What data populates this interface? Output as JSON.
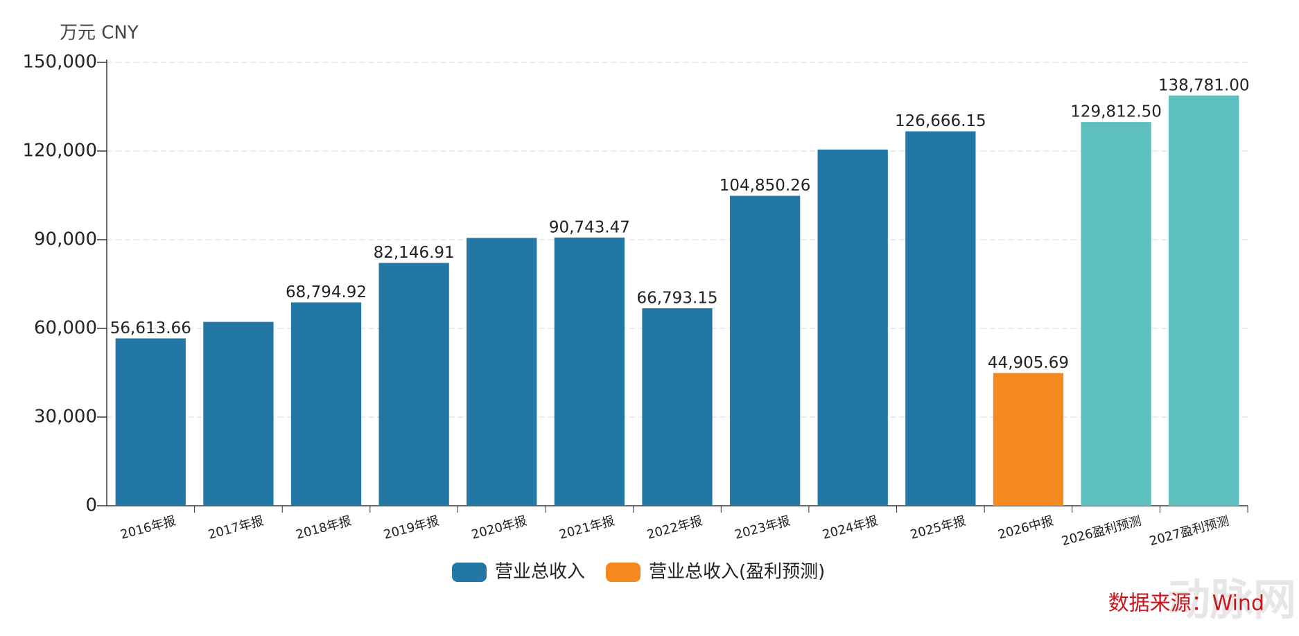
{
  "chart_data": {
    "type": "bar",
    "unit_label": "万元  CNY",
    "categories": [
      "2016年报",
      "2017年报",
      "2018年报",
      "2019年报",
      "2020年报",
      "2021年报",
      "2022年报",
      "2023年报",
      "2024年报",
      "2025年报",
      "2026中报",
      "2026盈利预测",
      "2027盈利预测"
    ],
    "values": [
      56613.66,
      62200,
      68794.92,
      82146.91,
      90600,
      90743.47,
      66793.15,
      104850.26,
      120500,
      126666.15,
      44905.69,
      129812.5,
      138781.0
    ],
    "value_labels": [
      "56,613.66",
      null,
      "68,794.92",
      "82,146.91",
      null,
      "90,743.47",
      "66,793.15",
      "104,850.26",
      null,
      "126,666.15",
      "44,905.69",
      "129,812.50",
      "138,781.00"
    ],
    "colors": [
      "#2277a4",
      "#2277a4",
      "#2277a4",
      "#2277a4",
      "#2277a4",
      "#2277a4",
      "#2277a4",
      "#2277a4",
      "#2277a4",
      "#2277a4",
      "#f5891f",
      "#5dbfbe",
      "#5dbfbe"
    ],
    "legend": [
      {
        "name": "营业总收入",
        "color": "#2277a4"
      },
      {
        "name": "营业总收入(盈利预测)",
        "color": "#f5891f"
      }
    ],
    "ylim": [
      0,
      150000
    ],
    "yticks": [
      0,
      {
        "value": 30000,
        "label": "30,000"
      },
      {
        "value": 60000,
        "label": "60,000"
      },
      {
        "value": 90000,
        "label": "90,000"
      },
      {
        "value": 120000,
        "label": "120,000"
      },
      {
        "value": 150000,
        "label": "150,000"
      }
    ],
    "grid": true,
    "source": "数据来源：Wind",
    "watermark": "动脉网"
  }
}
